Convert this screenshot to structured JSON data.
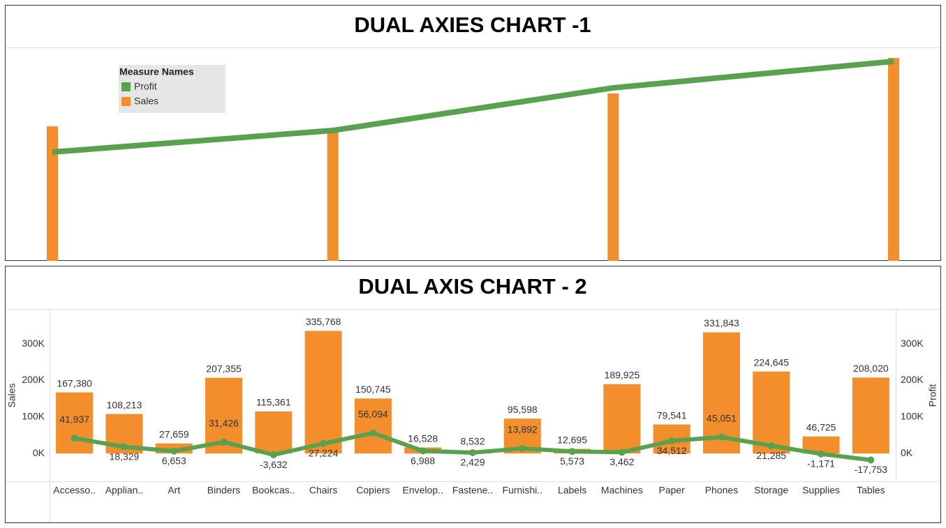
{
  "chart_data": [
    {
      "type": "combo",
      "title": "DUAL AXIES CHART -1",
      "legend_title": "Measure Names",
      "legend": "top-left",
      "categories": [
        null,
        null,
        null,
        null
      ],
      "series": [
        {
          "name": "Profit",
          "color": "#59a14f",
          "mark": "line",
          "axis": "y2",
          "values": [
            51300,
            61500,
            81600,
            94100
          ]
        },
        {
          "name": "Sales",
          "color": "#f28e2b",
          "mark": "bar",
          "values": [
            486000,
            466000,
            605000,
            733000
          ]
        }
      ],
      "ylim": [
        0,
        766000
      ],
      "y2lim": [
        0,
        100000
      ]
    },
    {
      "type": "combo",
      "title": "DUAL AXIS CHART - 2",
      "ylabel": "Sales",
      "y2label": "Profit",
      "categories": [
        "Accesso..",
        "Applian..",
        "Art",
        "Binders",
        "Bookcas..",
        "Chairs",
        "Copiers",
        "Envelop..",
        "Fastene..",
        "Furnishi..",
        "Labels",
        "Machines",
        "Paper",
        "Phones",
        "Storage",
        "Supplies",
        "Tables"
      ],
      "series": [
        {
          "name": "Sales",
          "color": "#f28e2b",
          "mark": "bar",
          "values": [
            167380,
            108213,
            27659,
            207355,
            115361,
            335768,
            150745,
            16528,
            8532,
            95598,
            12695,
            189925,
            79541,
            331843,
            224645,
            46725,
            208020
          ],
          "value_labels": [
            "167,380",
            "108,213",
            "27,659",
            "207,355",
            "115,361",
            "335,768",
            "150,745",
            "16,528",
            "8,532",
            "95,598",
            "12,695",
            "189,925",
            "79,541",
            "331,843",
            "224,645",
            "46,725",
            "208,020"
          ]
        },
        {
          "name": "Profit",
          "color": "#59a14f",
          "mark": "line",
          "axis": "y2",
          "values": [
            41937,
            18329,
            6653,
            31426,
            -3632,
            27224,
            56094,
            6988,
            2429,
            13892,
            5573,
            3462,
            34512,
            45051,
            21285,
            -1171,
            -17753
          ],
          "value_labels": [
            "41,937",
            "18,329",
            "6,653",
            "31,426",
            "-3,632",
            "27,224",
            "56,094",
            "6,988",
            "2,429",
            "13,892",
            "5,573",
            "3,462",
            "34,512",
            "45,051",
            "21,285",
            "-1,171",
            "-17,753"
          ]
        }
      ],
      "ylim": [
        -76000,
        392000
      ],
      "y2lim": [
        -76000,
        392000
      ],
      "yticks": [
        {
          "value": 0,
          "label": "0K"
        },
        {
          "value": 100000,
          "label": "100K"
        },
        {
          "value": 200000,
          "label": "200K"
        },
        {
          "value": 300000,
          "label": "300K"
        }
      ],
      "y2ticks": [
        {
          "value": 0,
          "label": "0K"
        },
        {
          "value": 100000,
          "label": "100K"
        },
        {
          "value": 200000,
          "label": "200K"
        },
        {
          "value": 300000,
          "label": "300K"
        }
      ]
    }
  ]
}
